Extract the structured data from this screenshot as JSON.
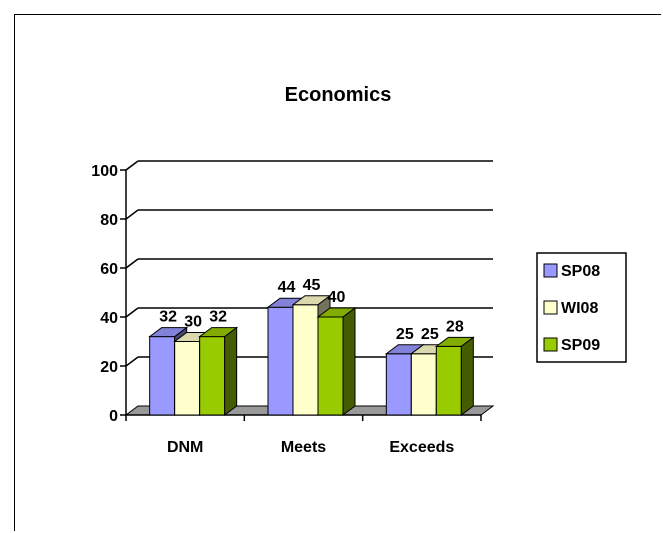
{
  "chart_data": {
    "type": "bar",
    "title": "Economics",
    "categories": [
      "DNM",
      "Meets",
      "Exceeds"
    ],
    "series": [
      {
        "name": "SP08",
        "values": [
          32,
          44,
          25
        ],
        "color": "#9999ff"
      },
      {
        "name": "WI08",
        "values": [
          30,
          45,
          25
        ],
        "color": "#ffffcc"
      },
      {
        "name": "SP09",
        "values": [
          32,
          40,
          28
        ],
        "color": "#99cc00"
      }
    ],
    "ylim": [
      0,
      100
    ],
    "yticks": [
      "0",
      "20",
      "40",
      "60",
      "80",
      "100"
    ],
    "grid": true,
    "legend": "right",
    "style": "3d"
  }
}
